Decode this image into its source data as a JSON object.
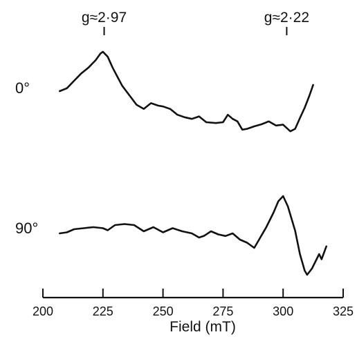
{
  "chart_data": {
    "type": "line",
    "title": "",
    "xlabel": "Field (mT)",
    "ylabel": "",
    "xlim": [
      200,
      325
    ],
    "x_ticks": [
      "200",
      "225",
      "250",
      "275",
      "300",
      "325"
    ],
    "grid": false,
    "legend": "none",
    "annotations": [
      {
        "text": "g≈2·97",
        "x": 225.5
      },
      {
        "text": "g≈2·22",
        "x": 301.5
      }
    ],
    "series": [
      {
        "name": "0°",
        "x": [
          207,
          210,
          213,
          216,
          219,
          222,
          224,
          225,
          227,
          229,
          231,
          233,
          236,
          239,
          242,
          245,
          248,
          250,
          253,
          256,
          259,
          262,
          265,
          268,
          272,
          275,
          277,
          279,
          281,
          283,
          285,
          288,
          291,
          294,
          297,
          300,
          303,
          305,
          307,
          309,
          311,
          312.5
        ],
        "y": [
          0.05,
          0.12,
          0.3,
          0.48,
          0.62,
          0.8,
          0.96,
          1.0,
          0.88,
          0.62,
          0.4,
          0.18,
          -0.05,
          -0.28,
          -0.38,
          -0.24,
          -0.3,
          -0.32,
          -0.38,
          -0.52,
          -0.58,
          -0.62,
          -0.56,
          -0.7,
          -0.72,
          -0.7,
          -0.52,
          -0.62,
          -0.68,
          -0.88,
          -0.86,
          -0.8,
          -0.75,
          -0.68,
          -0.78,
          -0.76,
          -0.92,
          -0.86,
          -0.6,
          -0.35,
          -0.05,
          0.2
        ]
      },
      {
        "name": "90°",
        "x": [
          207,
          210,
          213,
          217,
          221,
          225,
          227,
          230,
          234,
          238,
          242,
          246,
          250,
          254,
          258,
          262,
          265,
          267,
          270,
          273,
          276,
          279,
          282,
          285,
          288,
          290,
          293,
          296,
          298,
          300,
          302,
          305,
          307,
          309,
          310,
          312,
          315,
          316,
          318
        ],
        "y": [
          0.0,
          0.02,
          0.08,
          0.1,
          0.12,
          0.1,
          0.06,
          0.16,
          0.18,
          0.16,
          0.04,
          0.12,
          0.02,
          0.1,
          0.04,
          0.0,
          -0.08,
          -0.05,
          0.04,
          -0.02,
          -0.05,
          0.0,
          -0.12,
          -0.18,
          -0.28,
          -0.12,
          0.12,
          0.4,
          0.62,
          0.72,
          0.52,
          0.05,
          -0.4,
          -0.72,
          -0.8,
          -0.68,
          -0.4,
          -0.5,
          -0.25
        ]
      }
    ]
  }
}
